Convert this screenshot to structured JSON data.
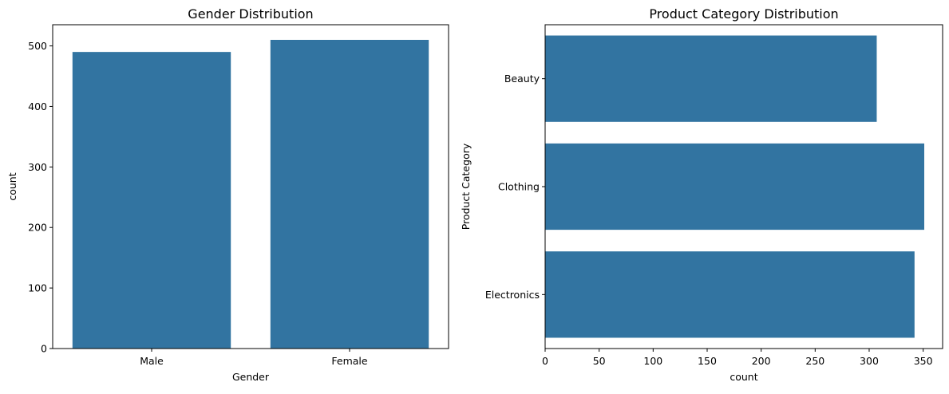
{
  "chart_data": [
    {
      "type": "bar",
      "orientation": "vertical",
      "title": "Gender Distribution",
      "xlabel": "Gender",
      "ylabel": "count",
      "categories": [
        "Male",
        "Female"
      ],
      "values": [
        490,
        510
      ],
      "ylim": [
        0,
        535
      ],
      "yticks": [
        0,
        100,
        200,
        300,
        400,
        500
      ],
      "grid": false,
      "color": "#3274a1"
    },
    {
      "type": "bar",
      "orientation": "horizontal",
      "title": "Product Category Distribution",
      "xlabel": "count",
      "ylabel": "Product Category",
      "categories": [
        "Beauty",
        "Clothing",
        "Electronics"
      ],
      "values": [
        307,
        351,
        342
      ],
      "xlim": [
        0,
        368
      ],
      "xticks": [
        0,
        50,
        100,
        150,
        200,
        250,
        300,
        350
      ],
      "grid": false,
      "color": "#3274a1"
    }
  ]
}
